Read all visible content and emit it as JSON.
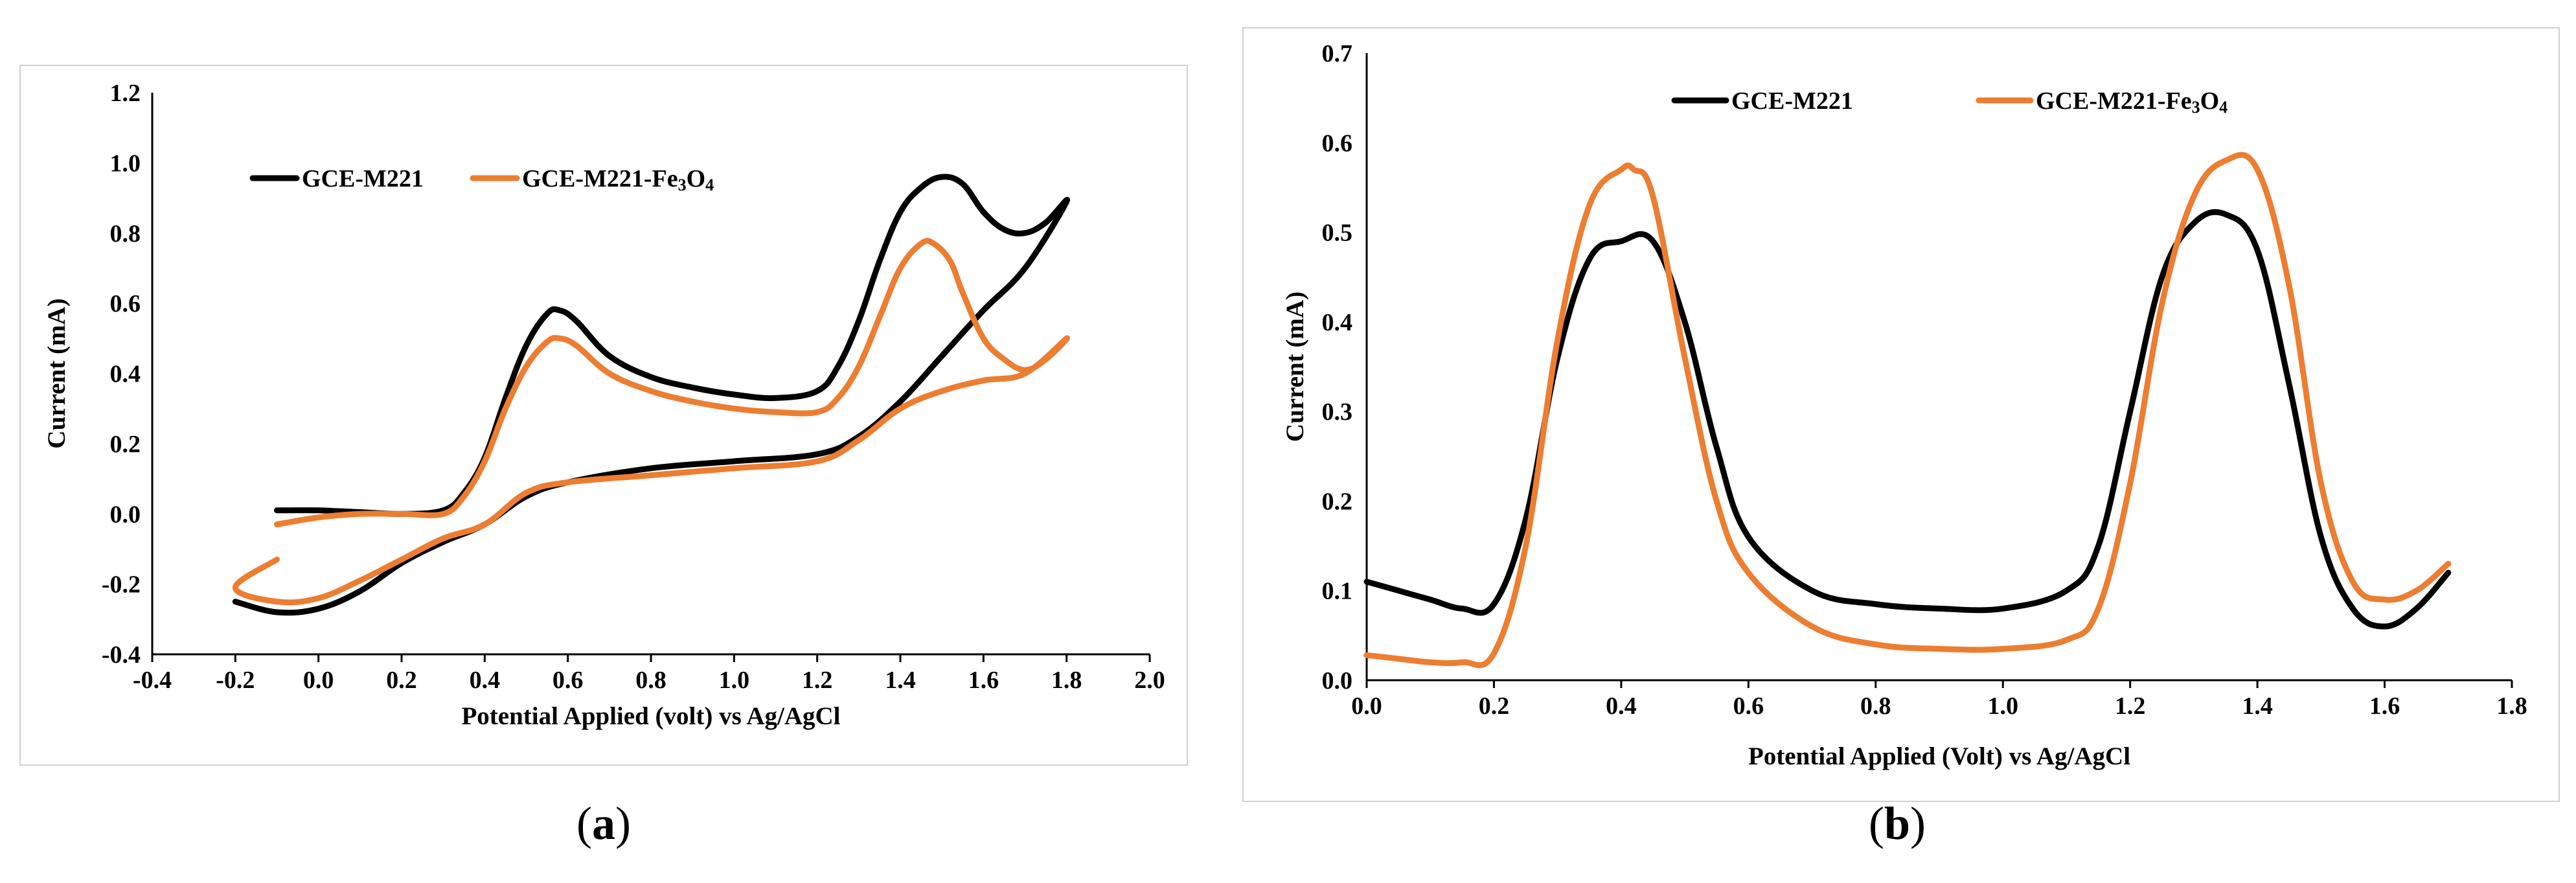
{
  "chart_data": [
    {
      "type": "line",
      "panel": "a",
      "caption_open": "(",
      "caption_letter": "a",
      "caption_close": ")",
      "xlabel": "Potential Applied (volt) vs Ag/AgCl",
      "ylabel": "Current (mA)",
      "xlim": [
        -0.4,
        2.0
      ],
      "ylim": [
        -0.4,
        1.2
      ],
      "xticks": [
        "-0.4",
        "-0.2",
        "0.0",
        "0.2",
        "0.4",
        "0.6",
        "0.8",
        "1.0",
        "1.2",
        "1.4",
        "1.6",
        "1.8",
        "2.0"
      ],
      "yticks": [
        "-0.4",
        "-0.2",
        "0.0",
        "0.2",
        "0.4",
        "0.6",
        "0.8",
        "1.0",
        "1.2"
      ],
      "legend_position": "top-left",
      "series": [
        {
          "name": "GCE-M221",
          "legend_label": "GCE-M221",
          "color": "#000000",
          "x": [
            -0.1,
            0.0,
            0.1,
            0.2,
            0.3,
            0.35,
            0.4,
            0.45,
            0.5,
            0.55,
            0.58,
            0.62,
            0.7,
            0.8,
            0.9,
            1.0,
            1.1,
            1.2,
            1.25,
            1.3,
            1.35,
            1.4,
            1.45,
            1.5,
            1.55,
            1.6,
            1.65,
            1.7,
            1.75,
            1.8,
            1.7,
            1.6,
            1.5,
            1.4,
            1.3,
            1.2,
            1.0,
            0.8,
            0.6,
            0.5,
            0.4,
            0.3,
            0.2,
            0.1,
            0.0,
            -0.1,
            -0.2
          ],
          "y": [
            0.01,
            0.01,
            0.005,
            0.0,
            0.01,
            0.06,
            0.16,
            0.33,
            0.48,
            0.57,
            0.58,
            0.55,
            0.45,
            0.39,
            0.36,
            0.34,
            0.33,
            0.35,
            0.42,
            0.55,
            0.72,
            0.86,
            0.93,
            0.96,
            0.94,
            0.86,
            0.81,
            0.8,
            0.83,
            0.89,
            0.7,
            0.58,
            0.45,
            0.32,
            0.22,
            0.17,
            0.15,
            0.13,
            0.09,
            0.05,
            -0.03,
            -0.08,
            -0.14,
            -0.22,
            -0.27,
            -0.28,
            -0.25
          ]
        },
        {
          "name": "GCE-M221-Fe3O4",
          "legend_label_prefix": "GCE-M221-Fe",
          "legend_sub1": "3",
          "legend_mid": "O",
          "legend_sub2": "4",
          "color": "#ed7d31",
          "x": [
            -0.1,
            0.0,
            0.1,
            0.2,
            0.3,
            0.35,
            0.4,
            0.45,
            0.5,
            0.55,
            0.58,
            0.62,
            0.7,
            0.8,
            0.9,
            1.0,
            1.1,
            1.2,
            1.25,
            1.3,
            1.35,
            1.4,
            1.45,
            1.48,
            1.52,
            1.55,
            1.6,
            1.65,
            1.7,
            1.75,
            1.8,
            1.7,
            1.6,
            1.5,
            1.4,
            1.3,
            1.2,
            1.0,
            0.8,
            0.6,
            0.5,
            0.4,
            0.3,
            0.2,
            0.1,
            0.0,
            -0.1,
            -0.2,
            -0.1
          ],
          "y": [
            -0.03,
            -0.01,
            0.0,
            0.0,
            0.0,
            0.05,
            0.15,
            0.3,
            0.42,
            0.49,
            0.5,
            0.48,
            0.4,
            0.35,
            0.32,
            0.3,
            0.29,
            0.29,
            0.33,
            0.42,
            0.56,
            0.7,
            0.77,
            0.77,
            0.72,
            0.63,
            0.5,
            0.44,
            0.41,
            0.44,
            0.5,
            0.4,
            0.38,
            0.35,
            0.3,
            0.21,
            0.15,
            0.13,
            0.11,
            0.09,
            0.06,
            -0.03,
            -0.07,
            -0.13,
            -0.19,
            -0.24,
            -0.25,
            -0.21,
            -0.13
          ]
        }
      ]
    },
    {
      "type": "line",
      "panel": "b",
      "caption_open": "(",
      "caption_letter": "b",
      "caption_close": ")",
      "xlabel": "Potential Applied (Volt) vs Ag/AgCl",
      "ylabel": "Current (mA)",
      "xlim": [
        0.0,
        1.8
      ],
      "ylim": [
        0.0,
        0.7
      ],
      "xticks": [
        "0.0",
        "0.2",
        "0.4",
        "0.6",
        "0.8",
        "1.0",
        "1.2",
        "1.4",
        "1.6",
        "1.8"
      ],
      "yticks": [
        "0.0",
        "0.1",
        "0.2",
        "0.3",
        "0.4",
        "0.5",
        "0.6",
        "0.7"
      ],
      "legend_position": "top",
      "series": [
        {
          "name": "GCE-M221",
          "legend_label": "GCE-M221",
          "color": "#000000",
          "x": [
            0.0,
            0.05,
            0.1,
            0.15,
            0.2,
            0.25,
            0.3,
            0.35,
            0.4,
            0.45,
            0.5,
            0.55,
            0.6,
            0.7,
            0.8,
            0.9,
            1.0,
            1.1,
            1.15,
            1.2,
            1.25,
            1.3,
            1.35,
            1.4,
            1.45,
            1.5,
            1.55,
            1.6,
            1.65,
            1.7
          ],
          "y": [
            0.11,
            0.1,
            0.09,
            0.08,
            0.085,
            0.18,
            0.36,
            0.47,
            0.49,
            0.49,
            0.4,
            0.26,
            0.16,
            0.1,
            0.085,
            0.08,
            0.08,
            0.1,
            0.15,
            0.3,
            0.45,
            0.51,
            0.52,
            0.48,
            0.33,
            0.16,
            0.08,
            0.06,
            0.08,
            0.12
          ]
        },
        {
          "name": "GCE-M221-Fe3O4",
          "legend_label_prefix": "GCE-M221-Fe",
          "legend_sub1": "3",
          "legend_mid": "O",
          "legend_sub2": "4",
          "color": "#ed7d31",
          "x": [
            0.0,
            0.05,
            0.1,
            0.15,
            0.2,
            0.25,
            0.3,
            0.35,
            0.4,
            0.42,
            0.45,
            0.5,
            0.55,
            0.6,
            0.7,
            0.8,
            0.9,
            1.0,
            1.1,
            1.15,
            1.2,
            1.25,
            1.3,
            1.35,
            1.4,
            1.45,
            1.5,
            1.55,
            1.6,
            1.65,
            1.7
          ],
          "y": [
            0.028,
            0.024,
            0.02,
            0.02,
            0.03,
            0.15,
            0.38,
            0.53,
            0.57,
            0.57,
            0.54,
            0.36,
            0.2,
            0.12,
            0.06,
            0.04,
            0.035,
            0.035,
            0.045,
            0.08,
            0.22,
            0.42,
            0.54,
            0.58,
            0.57,
            0.44,
            0.22,
            0.11,
            0.09,
            0.1,
            0.13
          ]
        }
      ]
    }
  ]
}
